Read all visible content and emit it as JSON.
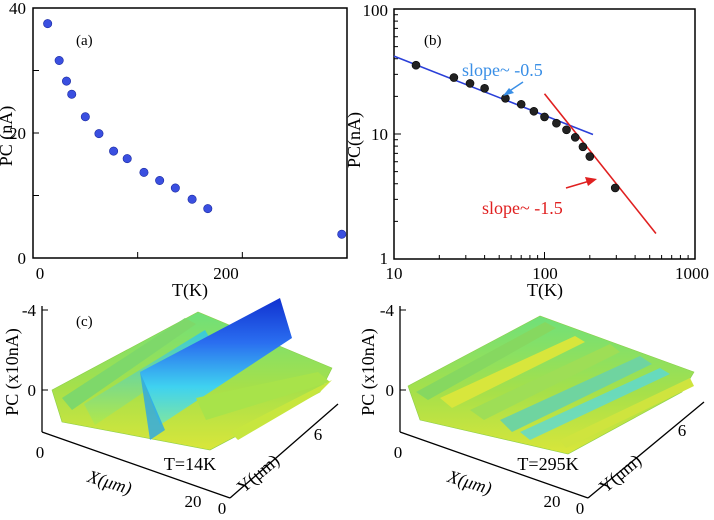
{
  "chart_data": [
    {
      "panel": "(a)",
      "type": "scatter",
      "xlabel": "T(K)",
      "ylabel": "PC (nA)",
      "xlim": [
        0,
        300
      ],
      "ylim": [
        0,
        40
      ],
      "x_ticks": [
        "0",
        "200"
      ],
      "y_ticks": [
        "0",
        "20",
        "40"
      ],
      "grid": false,
      "marker_color": "#3a4fe0",
      "points": [
        {
          "x": 14,
          "y": 37.5
        },
        {
          "x": 25,
          "y": 31.6
        },
        {
          "x": 32,
          "y": 28.3
        },
        {
          "x": 37,
          "y": 26.2
        },
        {
          "x": 50,
          "y": 22.6
        },
        {
          "x": 63,
          "y": 19.9
        },
        {
          "x": 77,
          "y": 17.1
        },
        {
          "x": 90,
          "y": 15.9
        },
        {
          "x": 106,
          "y": 13.7
        },
        {
          "x": 121,
          "y": 12.4
        },
        {
          "x": 136,
          "y": 11.2
        },
        {
          "x": 152,
          "y": 9.4
        },
        {
          "x": 167,
          "y": 7.9
        },
        {
          "x": 295,
          "y": 3.8
        }
      ]
    },
    {
      "panel": "(b)",
      "type": "scatter",
      "xscale": "log",
      "yscale": "log",
      "xlabel": "T(K)",
      "ylabel": "PC(nA)",
      "xlim": [
        10,
        1000
      ],
      "ylim": [
        1,
        100
      ],
      "x_ticks": [
        "10",
        "100",
        "1000"
      ],
      "y_ticks": [
        "1",
        "10",
        "100"
      ],
      "grid": false,
      "marker_color": "#222222",
      "points": [
        {
          "x": 14,
          "y": 35.5
        },
        {
          "x": 25,
          "y": 28.3
        },
        {
          "x": 32,
          "y": 25.4
        },
        {
          "x": 40,
          "y": 23.2
        },
        {
          "x": 55,
          "y": 19.3
        },
        {
          "x": 70,
          "y": 17.3
        },
        {
          "x": 85,
          "y": 15.2
        },
        {
          "x": 100,
          "y": 13.7
        },
        {
          "x": 120,
          "y": 12.2
        },
        {
          "x": 140,
          "y": 10.8
        },
        {
          "x": 160,
          "y": 9.4
        },
        {
          "x": 180,
          "y": 7.9
        },
        {
          "x": 200,
          "y": 6.6
        },
        {
          "x": 295,
          "y": 3.7
        }
      ],
      "fit_lines": [
        {
          "slope": -0.5,
          "color": "#2a3fd8",
          "from": {
            "x": 10,
            "y": 42
          },
          "to": {
            "x": 210,
            "y": 9.9
          }
        },
        {
          "slope": -1.5,
          "color": "#e02020",
          "from": {
            "x": 100,
            "y": 21
          },
          "to": {
            "x": 550,
            "y": 1.6
          }
        }
      ],
      "annotations": [
        {
          "text": "slope~ -0.5",
          "color": "#3a8fe6"
        },
        {
          "text": "slope~ -1.5",
          "color": "#e02020"
        }
      ]
    },
    {
      "panel": "(c)",
      "type": "surface",
      "xlabel": "X(μm)",
      "ylabel": "Y(μm)",
      "zlabel": "PC (x10nA)",
      "annotation": "T=14K",
      "x_ticks": [
        "0",
        "20"
      ],
      "y_ticks": [
        "0",
        "6"
      ],
      "z_ticks": [
        "-4",
        "0"
      ]
    },
    {
      "panel": "",
      "type": "surface",
      "xlabel": "X(μm)",
      "ylabel": "Y(μm)",
      "zlabel": "PC (x10nA)",
      "annotation": "T=295K",
      "x_ticks": [
        "0",
        "20"
      ],
      "y_ticks": [
        "0",
        "6"
      ],
      "z_ticks": [
        "-4",
        "0"
      ]
    }
  ]
}
